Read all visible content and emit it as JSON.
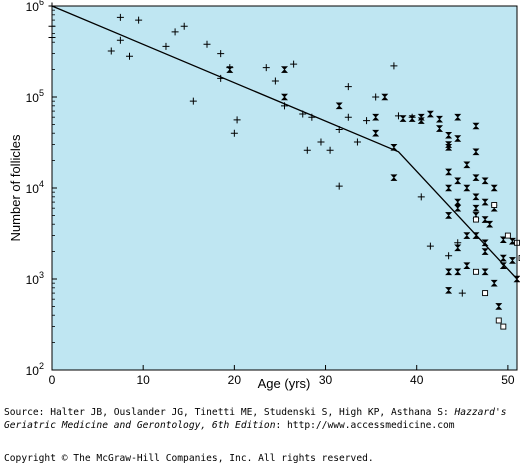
{
  "chart_data": {
    "type": "scatter",
    "xlabel": "Age (yrs)",
    "ylabel": "Number of follicles",
    "xlim": [
      0,
      51
    ],
    "ylim_log10": [
      2,
      6
    ],
    "log_y": true,
    "grid": false,
    "background_color": "#bfe6f2",
    "x_ticks": [
      0,
      10,
      20,
      30,
      40,
      50
    ],
    "y_tick_exponents": [
      2,
      3,
      4,
      5,
      6
    ],
    "y_tick_base": "10",
    "series": [
      {
        "marker": "plus",
        "points": [
          [
            0,
            1000000
          ],
          [
            0,
            600000
          ],
          [
            0,
            450000
          ],
          [
            6.5,
            320000
          ],
          [
            7.5,
            750000
          ],
          [
            7.5,
            420000
          ],
          [
            8.5,
            280000
          ],
          [
            9.5,
            700000
          ],
          [
            12.5,
            360000
          ],
          [
            13.5,
            520000
          ],
          [
            14.5,
            600000
          ],
          [
            15.5,
            90000
          ],
          [
            17,
            380000
          ],
          [
            18.5,
            300000
          ],
          [
            18.5,
            160000
          ],
          [
            19.5,
            210000
          ],
          [
            20,
            40000
          ],
          [
            20.3,
            56000
          ],
          [
            23.5,
            210000
          ],
          [
            24.5,
            150000
          ],
          [
            25.5,
            80000
          ],
          [
            26.5,
            230000
          ],
          [
            27.5,
            65000
          ],
          [
            28,
            26000
          ],
          [
            28.5,
            60000
          ],
          [
            29.5,
            32000
          ],
          [
            30.5,
            26000
          ],
          [
            31.5,
            44000
          ],
          [
            31.5,
            10500
          ],
          [
            32.5,
            130000
          ],
          [
            32.5,
            60000
          ],
          [
            33.5,
            32000
          ],
          [
            34.5,
            55000
          ],
          [
            35.5,
            100000
          ],
          [
            37.5,
            220000
          ],
          [
            38,
            62000
          ],
          [
            39.5,
            60000
          ],
          [
            40.5,
            8000
          ],
          [
            41.5,
            2300
          ],
          [
            43.5,
            1800
          ],
          [
            44.5,
            2500
          ],
          [
            45,
            700
          ]
        ]
      },
      {
        "marker": "bowtie",
        "points": [
          [
            19.5,
            200000
          ],
          [
            25.5,
            200000
          ],
          [
            25.5,
            100000
          ],
          [
            31.5,
            80000
          ],
          [
            35.5,
            60000
          ],
          [
            35.5,
            40000
          ],
          [
            36.5,
            100000
          ],
          [
            37.5,
            28000
          ],
          [
            37.5,
            13000
          ],
          [
            38.5,
            58000
          ],
          [
            39.5,
            58000
          ],
          [
            40.5,
            60000
          ],
          [
            40.5,
            55000
          ],
          [
            41.5,
            65000
          ],
          [
            42.5,
            57000
          ],
          [
            42.5,
            45000
          ],
          [
            43.5,
            38000
          ],
          [
            43.5,
            30000
          ],
          [
            43.5,
            28000
          ],
          [
            43.5,
            15000
          ],
          [
            43.5,
            10000
          ],
          [
            43.5,
            5000
          ],
          [
            43.5,
            1200
          ],
          [
            43.5,
            750
          ],
          [
            44.5,
            60000
          ],
          [
            44.5,
            35000
          ],
          [
            44.5,
            12000
          ],
          [
            44.5,
            7000
          ],
          [
            44.5,
            6000
          ],
          [
            44.5,
            2200
          ],
          [
            44.5,
            1200
          ],
          [
            45.5,
            18000
          ],
          [
            45.5,
            10000
          ],
          [
            45.5,
            3000
          ],
          [
            45.5,
            1400
          ],
          [
            46.5,
            48000
          ],
          [
            46.5,
            25000
          ],
          [
            46.5,
            13000
          ],
          [
            46.5,
            8000
          ],
          [
            46.5,
            6000
          ],
          [
            46.5,
            5000
          ],
          [
            46.5,
            3000
          ],
          [
            47.5,
            12000
          ],
          [
            47.5,
            7000
          ],
          [
            47.5,
            4500
          ],
          [
            47.5,
            2500
          ],
          [
            47.5,
            2000
          ],
          [
            47.5,
            1200
          ],
          [
            48,
            4000
          ],
          [
            48.5,
            10000
          ],
          [
            48.5,
            6000
          ],
          [
            48.5,
            900
          ],
          [
            49,
            500
          ],
          [
            49.5,
            2700
          ],
          [
            49.5,
            1700
          ],
          [
            49.5,
            1400
          ],
          [
            50.5,
            2600
          ],
          [
            50.5,
            1600
          ],
          [
            51,
            1000
          ]
        ]
      },
      {
        "marker": "square",
        "points": [
          [
            46.5,
            4500
          ],
          [
            46.5,
            1200
          ],
          [
            47.5,
            700
          ],
          [
            48.5,
            6500
          ],
          [
            49,
            350
          ],
          [
            49.5,
            300
          ],
          [
            50,
            3000
          ],
          [
            51,
            2500
          ],
          [
            51.5,
            1700
          ]
        ]
      },
      {
        "marker": "line",
        "points": [
          [
            0,
            1000000
          ],
          [
            38,
            25000
          ],
          [
            51,
            1000
          ]
        ]
      }
    ]
  },
  "footer": {
    "source_prefix": "Source: Halter JB, Ouslander JG, Tinetti ME, Studenski S, High KP, Asthana S: ",
    "source_book": "Hazzard's Geriatric Medicine and Gerontology, 6th Edition",
    "source_suffix": ": http://www.accessmedicine.com",
    "copyright": "Copyright © The McGraw-Hill Companies, Inc. All rights reserved."
  }
}
